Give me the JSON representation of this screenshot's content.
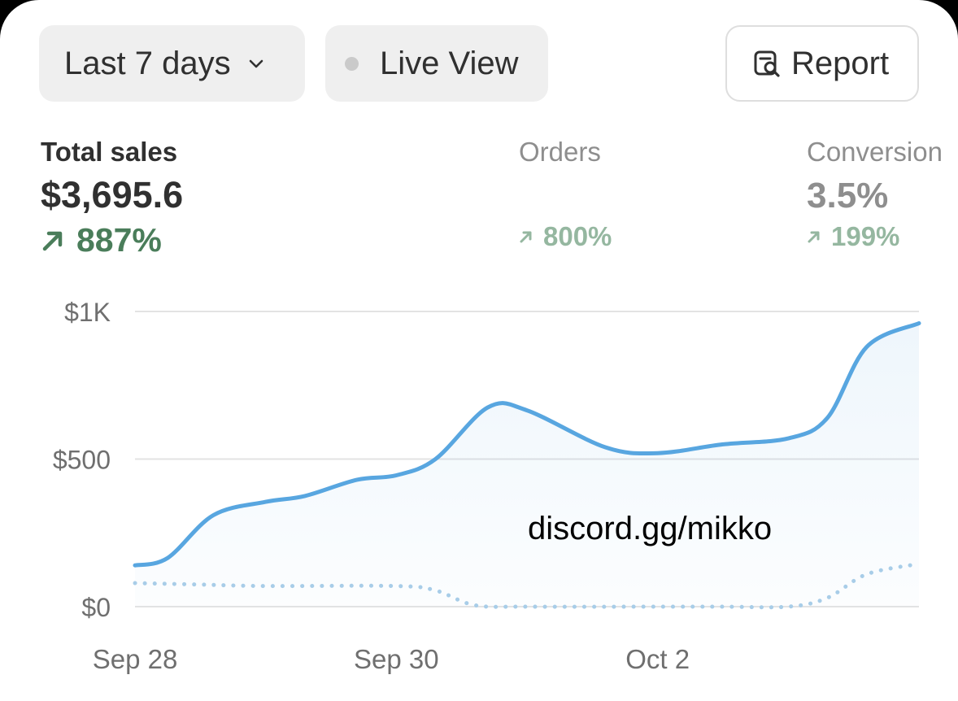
{
  "toolbar": {
    "range_label": "Last 7 days",
    "live_label": "Live View",
    "report_label": "Report"
  },
  "metrics": [
    {
      "label": "Total sales",
      "value": "$3,695.6",
      "change": "887%"
    },
    {
      "label": "Orders",
      "value": "",
      "change": "800%"
    },
    {
      "label": "Conversion",
      "value": "3.5%",
      "change": "199%"
    }
  ],
  "colors": {
    "primary_line": "#58a6e0",
    "comparison_line": "#a8cde8",
    "positive_change": "#4a7d5a",
    "muted_change": "#95b7a0"
  },
  "watermark": "discord.gg/mikko",
  "chart_data": {
    "type": "line",
    "ylim": [
      0,
      1000
    ],
    "yticks": [
      {
        "value": 1000,
        "label": "$1K"
      },
      {
        "value": 500,
        "label": "$500"
      },
      {
        "value": 0,
        "label": "$0"
      }
    ],
    "xticks": [
      {
        "value": 0,
        "label": "Sep 28"
      },
      {
        "value": 2,
        "label": "Sep 30"
      },
      {
        "value": 4,
        "label": "Oct 2"
      }
    ],
    "xlim": [
      0,
      6
    ],
    "grid": true,
    "series": [
      {
        "style": "solid-area",
        "x": [
          0,
          0.25,
          0.6,
          1.0,
          1.3,
          1.7,
          2.0,
          2.3,
          2.7,
          3.0,
          3.6,
          4.0,
          4.5,
          5.0,
          5.3,
          5.6,
          6.0
        ],
        "values": [
          140,
          165,
          310,
          355,
          375,
          430,
          445,
          500,
          675,
          665,
          540,
          520,
          550,
          570,
          640,
          880,
          960
        ]
      },
      {
        "style": "dotted",
        "x": [
          0,
          0.5,
          1.0,
          2.0,
          2.3,
          2.6,
          3.0,
          4.0,
          4.5,
          5.0,
          5.3,
          5.6,
          6.0
        ],
        "values": [
          80,
          75,
          70,
          70,
          55,
          5,
          0,
          0,
          0,
          0,
          30,
          110,
          145
        ]
      }
    ]
  }
}
